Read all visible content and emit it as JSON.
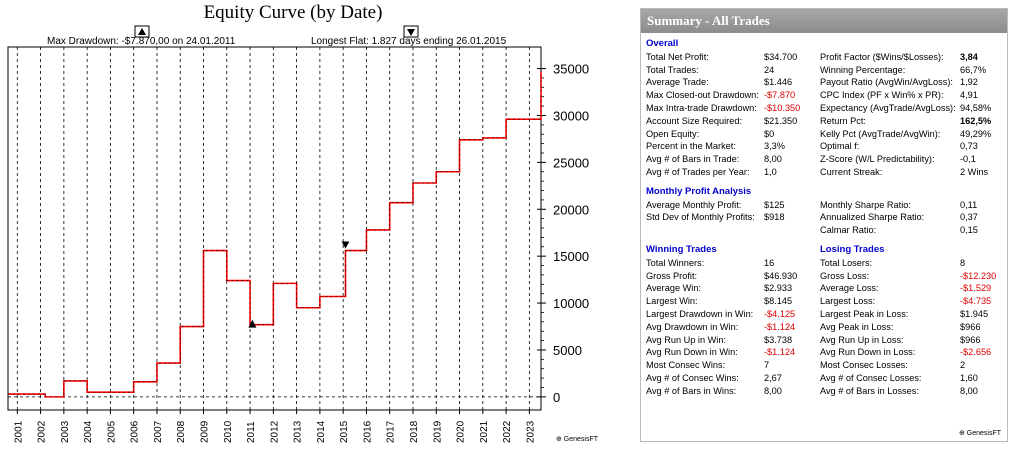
{
  "chart": {
    "title": "Equity Curve (by Date)",
    "max_drawdown_text": "Max Drawdown: -$7.870,00 on 24.01.2011",
    "longest_flat_text": "Longest Flat: 1.827 days ending 26.01.2015",
    "logo": "⊕ GenesisFT",
    "colors": {
      "equity": "#ff0000",
      "markers": "#000000",
      "grid": "#000000"
    }
  },
  "chart_data": {
    "type": "line",
    "title": "Equity Curve (by Date)",
    "xlabel": "",
    "ylabel": "",
    "x_tick_labels": [
      "2001",
      "2002",
      "2003",
      "2004",
      "2005",
      "2006",
      "2007",
      "2008",
      "2009",
      "2010",
      "2011",
      "2012",
      "2013",
      "2014",
      "2015",
      "2016",
      "2017",
      "2018",
      "2019",
      "2020",
      "2021",
      "2022",
      "2023"
    ],
    "y_ticks": [
      0,
      5000,
      10000,
      15000,
      20000,
      25000,
      30000,
      35000
    ],
    "y_tick_labels": [
      "0",
      "5000",
      "10000",
      "15000",
      "20000",
      "25000",
      "30000",
      "35000"
    ],
    "ylim": [
      -1400,
      37300
    ],
    "xlim": [
      2000.6,
      2023.5
    ],
    "series": [
      {
        "name": "Equity",
        "x": [
          2000.6,
          2002.2,
          2003.0,
          2004.0,
          2006.0,
          2007.0,
          2008.0,
          2009.0,
          2010.0,
          2011.0,
          2012.0,
          2013.0,
          2014.0,
          2015.1,
          2016.0,
          2017.0,
          2018.0,
          2019.0,
          2020.0,
          2021.0,
          2022.0,
          2023.5
        ],
        "values": [
          300,
          0,
          1700,
          500,
          1600,
          3600,
          7500,
          15600,
          12400,
          7700,
          12100,
          9500,
          10700,
          15600,
          17800,
          20700,
          22800,
          24000,
          27400,
          27600,
          29600,
          34700
        ]
      }
    ],
    "markers": [
      {
        "name": "max-drawdown-marker",
        "x": 2011.1,
        "y": 7700,
        "direction": "up"
      },
      {
        "name": "longest-flat-marker",
        "x": 2015.1,
        "y": 15600,
        "direction": "down"
      }
    ]
  },
  "summary": {
    "header": "Summary - All Trades",
    "overall": {
      "title": "Overall",
      "rows": [
        {
          "l": "Total Net Profit:",
          "v": "$34.700",
          "l2": "Profit Factor ($Wins/$Losses):",
          "v2": "3,84",
          "b2": true
        },
        {
          "l": "Total Trades:",
          "v": "24",
          "l2": "Winning Percentage:",
          "v2": "66,7%"
        },
        {
          "l": "Average Trade:",
          "v": "$1.446",
          "l2": "Payout Ratio (AvgWin/AvgLoss):",
          "v2": "1,92"
        },
        {
          "l": "Max Closed-out Drawdown:",
          "v": "-$7.870",
          "neg": true,
          "l2": "CPC Index (PF x Win% x PR):",
          "v2": "4,91"
        },
        {
          "l": "Max Intra-trade Drawdown:",
          "v": "-$10.350",
          "neg": true,
          "l2": "Expectancy (AvgTrade/AvgLoss):",
          "v2": "94,58%"
        },
        {
          "l": "Account Size Required:",
          "v": "$21.350",
          "l2": "Return Pct:",
          "v2": "162,5%",
          "b2": true
        },
        {
          "l": "Open Equity:",
          "v": "$0",
          "l2": "Kelly Pct (AvgTrade/AvgWin):",
          "v2": "49,29%"
        },
        {
          "l": "Percent in the Market:",
          "v": "3,3%",
          "l2": "Optimal f:",
          "v2": "0,73"
        },
        {
          "l": "Avg # of Bars in Trade:",
          "v": "8,00",
          "l2": "Z-Score (W/L Predictability):",
          "v2": "-0,1"
        },
        {
          "l": "Avg # of Trades per Year:",
          "v": "1,0",
          "l2": "Current Streak:",
          "v2": "2 Wins"
        }
      ]
    },
    "monthly": {
      "title": "Monthly Profit Analysis",
      "rows": [
        {
          "l": "Average Monthly Profit:",
          "v": "$125",
          "l2": "Monthly Sharpe Ratio:",
          "v2": "0,11"
        },
        {
          "l": "Std Dev of Monthly Profits:",
          "v": "$918",
          "l2": "Annualized Sharpe Ratio:",
          "v2": "0,37"
        },
        {
          "l": "",
          "v": "",
          "l2": "Calmar Ratio:",
          "v2": "0,15"
        }
      ]
    },
    "trades": {
      "title_win": "Winning Trades",
      "title_loss": "Losing Trades",
      "rows": [
        {
          "l": "Total Winners:",
          "v": "16",
          "l2": "Total Losers:",
          "v2": "8"
        },
        {
          "l": "Gross Profit:",
          "v": "$46.930",
          "l2": "Gross Loss:",
          "v2": "-$12.230",
          "neg2": true
        },
        {
          "l": "Average Win:",
          "v": "$2.933",
          "l2": "Average Loss:",
          "v2": "-$1.529",
          "neg2": true
        },
        {
          "l": "Largest Win:",
          "v": "$8.145",
          "l2": "Largest Loss:",
          "v2": "-$4.735",
          "neg2": true
        },
        {
          "l": "Largest Drawdown in Win:",
          "v": "-$4.125",
          "neg": true,
          "l2": "Largest Peak in Loss:",
          "v2": "$1.945"
        },
        {
          "l": "Avg Drawdown in Win:",
          "v": "-$1.124",
          "neg": true,
          "l2": "Avg Peak in Loss:",
          "v2": "$966"
        },
        {
          "l": "Avg Run Up in Win:",
          "v": "$3.738",
          "l2": "Avg Run Up in Loss:",
          "v2": "$966"
        },
        {
          "l": "Avg Run Down in Win:",
          "v": "-$1.124",
          "neg": true,
          "l2": "Avg Run Down in Loss:",
          "v2": "-$2.656",
          "neg2": true
        },
        {
          "l": "Most Consec Wins:",
          "v": "7",
          "l2": "Most Consec Losses:",
          "v2": "2"
        },
        {
          "l": "Avg # of Consec Wins:",
          "v": "2,67",
          "l2": "Avg # of Consec Losses:",
          "v2": "1,60"
        },
        {
          "l": "Avg # of Bars in Wins:",
          "v": "8,00",
          "l2": "Avg # of Bars in Losses:",
          "v2": "8,00"
        }
      ]
    },
    "logo": "⊕ GenesisFT"
  }
}
